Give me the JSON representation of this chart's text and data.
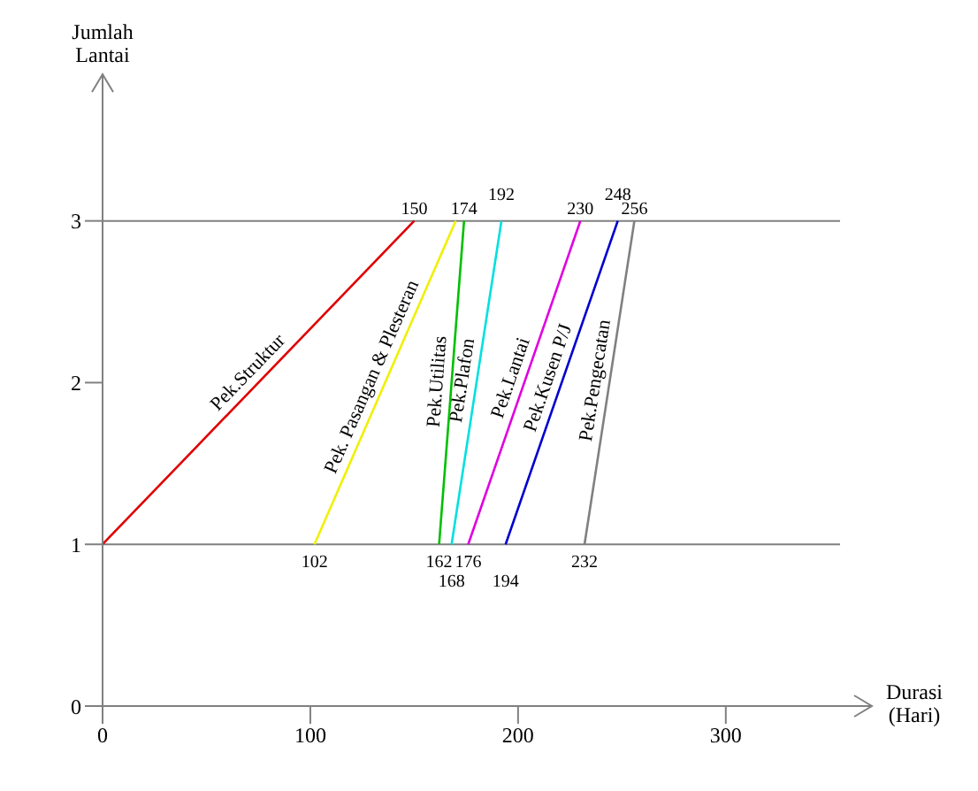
{
  "chart_data": {
    "type": "line",
    "xlabel": "Durasi (Hari)",
    "ylabel": "Jumlah Lantai",
    "xlim": [
      0,
      355
    ],
    "xticks": [
      0,
      100,
      200,
      300
    ],
    "ylim": [
      0,
      3.6
    ],
    "yticks": [
      0,
      1,
      2,
      3
    ],
    "marker": "none",
    "line_style": "solid",
    "series": [
      {
        "name": "Pek.Struktur",
        "color": "#e00000",
        "x": [
          0,
          150
        ],
        "values": [
          1,
          3
        ]
      },
      {
        "name": "Pek. Pasangan & Plesteran",
        "color": "#f0f000",
        "x": [
          102,
          170
        ],
        "values": [
          1,
          3
        ]
      },
      {
        "name": "Pek.Utilitas",
        "color": "#00c000",
        "x": [
          162,
          174
        ],
        "values": [
          1,
          3
        ]
      },
      {
        "name": "Pek.Plafon",
        "color": "#00e0e0",
        "x": [
          168,
          192
        ],
        "values": [
          1,
          3
        ]
      },
      {
        "name": "Pek.Lantai",
        "color": "#e000e0",
        "x": [
          176,
          230
        ],
        "values": [
          1,
          3
        ]
      },
      {
        "name": "Pek.Kusen P/J",
        "color": "#0000d0",
        "x": [
          194,
          248
        ],
        "values": [
          1,
          3
        ]
      },
      {
        "name": "Pek.Pengecatan",
        "color": "#808080",
        "x": [
          232,
          256
        ],
        "values": [
          1,
          3
        ]
      }
    ],
    "ref_lines": [
      {
        "axis": "y",
        "value": 1,
        "color": "#808080"
      },
      {
        "axis": "y",
        "value": 3,
        "color": "#808080"
      }
    ],
    "annotations": [
      {
        "text": "150",
        "x": 150,
        "y": 3
      },
      {
        "text": "174",
        "x": 174,
        "y": 3
      },
      {
        "text": "192",
        "x": 192,
        "y": 3
      },
      {
        "text": "230",
        "x": 230,
        "y": 3
      },
      {
        "text": "248",
        "x": 248,
        "y": 3
      },
      {
        "text": "256",
        "x": 256,
        "y": 3
      },
      {
        "text": "102",
        "x": 102,
        "y": 1
      },
      {
        "text": "162",
        "x": 162,
        "y": 1
      },
      {
        "text": "168",
        "x": 168,
        "y": 1
      },
      {
        "text": "176",
        "x": 176,
        "y": 1
      },
      {
        "text": "194",
        "x": 194,
        "y": 1
      },
      {
        "text": "232",
        "x": 232,
        "y": 1
      }
    ]
  }
}
